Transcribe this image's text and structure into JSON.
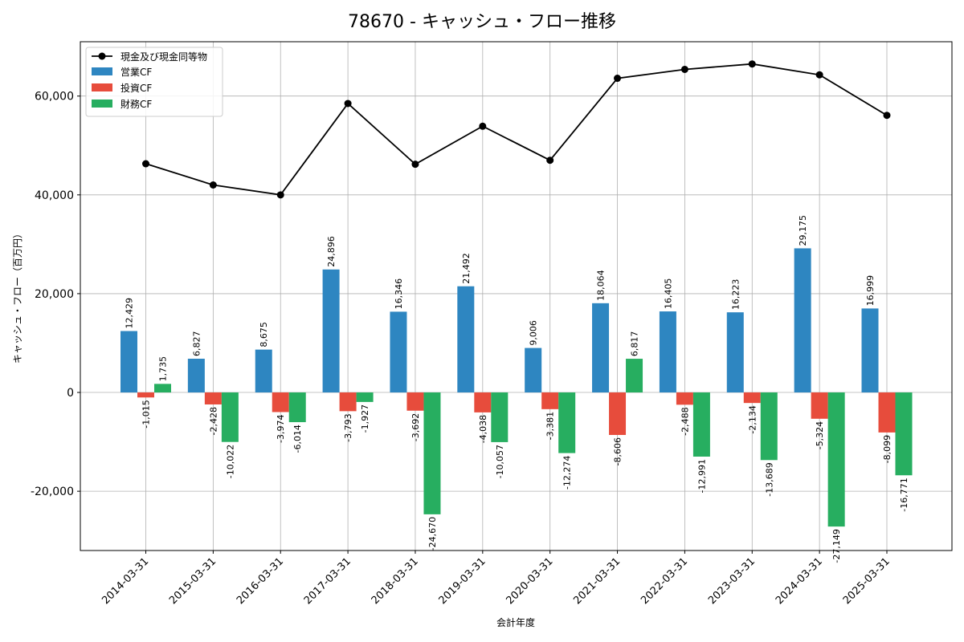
{
  "chart_data": {
    "type": "bar",
    "title": "78670 - キャッシュ・フロー推移",
    "xlabel": "会計年度",
    "ylabel": "キャッシュ・フロー（百万円）",
    "ylim": [
      -32000,
      71000
    ],
    "yticks": [
      -20000,
      0,
      20000,
      40000,
      60000
    ],
    "ytick_labels": [
      "-20,000",
      "0",
      "20,000",
      "40,000",
      "60,000"
    ],
    "grid": true,
    "legend_position": "top-left",
    "categories": [
      "2014-03-31",
      "2015-03-31",
      "2016-03-31",
      "2017-03-31",
      "2018-03-31",
      "2019-03-31",
      "2020-03-31",
      "2021-03-31",
      "2022-03-31",
      "2023-03-31",
      "2024-03-31",
      "2025-03-31"
    ],
    "series": [
      {
        "name": "営業CF",
        "type": "bar",
        "color": "#2e86c1",
        "values": [
          12429,
          6827,
          8675,
          24896,
          16346,
          21492,
          9006,
          18064,
          16405,
          16223,
          29175,
          16999
        ],
        "labels": [
          "12,429",
          "6,827",
          "8,675",
          "24,896",
          "16,346",
          "21,492",
          "9,006",
          "18,064",
          "16,405",
          "16,223",
          "29,175",
          "16,999"
        ]
      },
      {
        "name": "投資CF",
        "type": "bar",
        "color": "#e74c3c",
        "values": [
          -1015,
          -2428,
          -3974,
          -3793,
          -3692,
          -4038,
          -3381,
          -8606,
          -2488,
          -2134,
          -5324,
          -8099
        ],
        "labels": [
          "-1,015",
          "-2,428",
          "-3,974",
          "-3,793",
          "-3,692",
          "-4,038",
          "-3,381",
          "-8,606",
          "-2,488",
          "-2,134",
          "-5,324",
          "-8,099"
        ]
      },
      {
        "name": "財務CF",
        "type": "bar",
        "color": "#27ae60",
        "values": [
          1735,
          -10022,
          -6014,
          -1927,
          -24670,
          -10057,
          -12274,
          6817,
          -12991,
          -13689,
          -27149,
          -16771
        ],
        "labels": [
          "1,735",
          "-10,022",
          "-6,014",
          "-1,927",
          "-24,670",
          "-10,057",
          "-12,274",
          "6,817",
          "-12,991",
          "-13,689",
          "-27,149",
          "-16,771"
        ]
      },
      {
        "name": "現金及び現金同等物",
        "type": "line",
        "color": "#000000",
        "values": [
          46300,
          42000,
          40000,
          58500,
          46200,
          53900,
          47000,
          63600,
          65400,
          66500,
          64300,
          56100
        ]
      }
    ]
  }
}
